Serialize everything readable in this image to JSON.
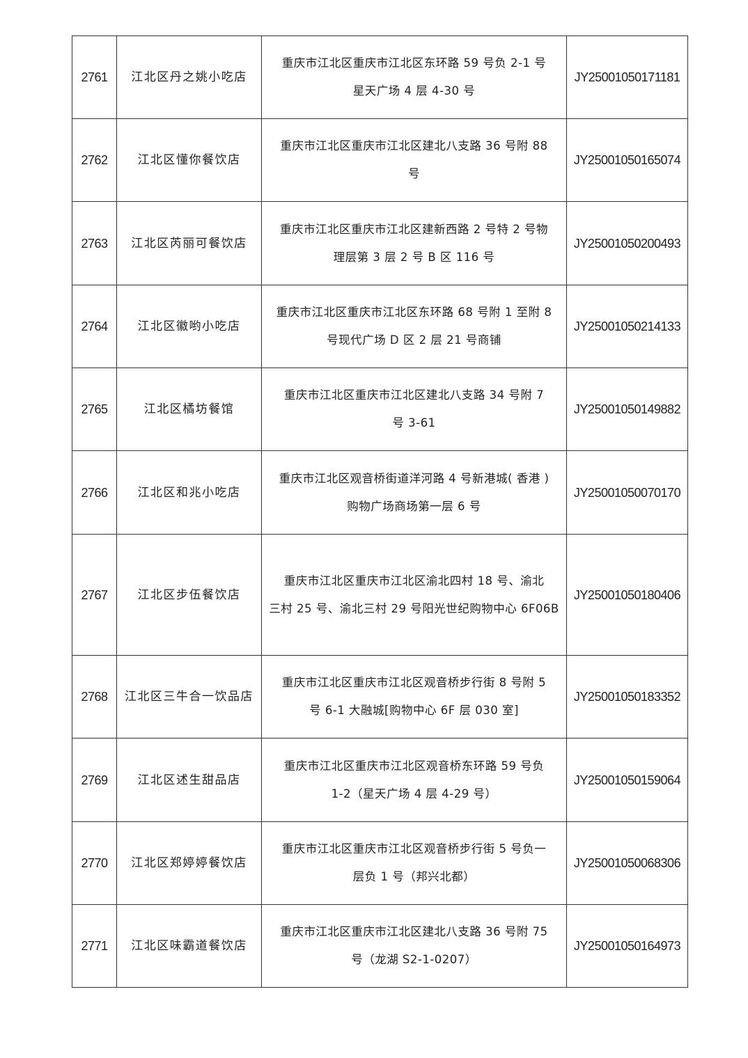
{
  "table": {
    "rows": [
      {
        "no": "2761",
        "name": "江北区丹之姚小吃店",
        "address": [
          "重庆市江北区重庆市江北区东环路 59 号负 2-1 号",
          "星天广场 4 层 4-30 号"
        ],
        "license": "JY25001050171181"
      },
      {
        "no": "2762",
        "name": "江北区懂你餐饮店",
        "address": [
          "重庆市江北区重庆市江北区建北八支路 36 号附 88",
          "号"
        ],
        "license": "JY25001050165074"
      },
      {
        "no": "2763",
        "name": "江北区芮丽可餐饮店",
        "address": [
          "重庆市江北区重庆市江北区建新西路 2 号特 2 号物",
          "理层第 3 层 2 号 B 区 116 号"
        ],
        "license": "JY25001050200493"
      },
      {
        "no": "2764",
        "name": "江北区徽哟小吃店",
        "address": [
          "重庆市江北区重庆市江北区东环路 68 号附 1 至附 8",
          "号现代广场 D 区 2 层 21 号商铺"
        ],
        "license": "JY25001050214133"
      },
      {
        "no": "2765",
        "name": "江北区橘坊餐馆",
        "address": [
          "重庆市江北区重庆市江北区建北八支路 34 号附 7",
          "号 3-61"
        ],
        "license": "JY25001050149882"
      },
      {
        "no": "2766",
        "name": "江北区和兆小吃店",
        "address": [
          "重庆市江北区观音桥街道洋河路 4 号新港城( 香港 )",
          "购物广场商场第一层 6 号"
        ],
        "license": "JY25001050070170"
      },
      {
        "no": "2767",
        "name": "江北区步伍餐饮店",
        "address": [
          "重庆市江北区重庆市江北区渝北四村 18 号、渝北",
          "三村 25 号、渝北三村 29 号阳光世纪购物中心 6F06B"
        ],
        "license": "JY25001050180406"
      },
      {
        "no": "2768",
        "name": "江北区三牛合一饮品店",
        "address": [
          "重庆市江北区重庆市江北区观音桥步行街 8 号附 5",
          "号 6-1 大融城[购物中心 6F 层 030 室]"
        ],
        "license": "JY25001050183352"
      },
      {
        "no": "2769",
        "name": "江北区述生甜品店",
        "address": [
          "重庆市江北区重庆市江北区观音桥东环路 59 号负",
          "1-2（星天广场 4 层 4-29 号）"
        ],
        "license": "JY25001050159064"
      },
      {
        "no": "2770",
        "name": "江北区郑婷婷餐饮店",
        "address": [
          "重庆市江北区重庆市江北区观音桥步行街 5 号负一",
          "层负 1 号（邦兴北都）"
        ],
        "license": "JY25001050068306"
      },
      {
        "no": "2771",
        "name": "江北区味霸道餐饮店",
        "address": [
          "重庆市江北区重庆市江北区建北八支路 36 号附 75",
          "号（龙湖 S2-1-0207）"
        ],
        "license": "JY25001050164973"
      }
    ]
  }
}
